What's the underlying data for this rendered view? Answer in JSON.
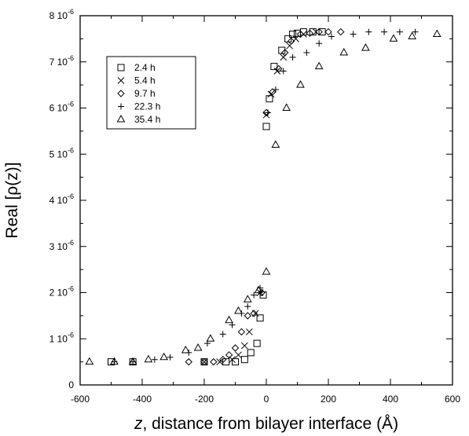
{
  "chart_data": {
    "type": "scatter",
    "xlabel_italic": "z",
    "xlabel_rest": ", distance from bilayer interface (Å)",
    "ylabel": "Real [ρ(z)]",
    "xlim": [
      -600,
      600
    ],
    "ylim": [
      0,
      8e-06
    ],
    "x_ticks": [
      -600,
      -400,
      -200,
      0,
      200,
      400,
      600
    ],
    "x_tick_labels": [
      "-600",
      "-400",
      "-200",
      "0",
      "200",
      "400",
      "600"
    ],
    "y_ticks": [
      0,
      1e-06,
      2e-06,
      3e-06,
      4e-06,
      5e-06,
      6e-06,
      7e-06,
      8e-06
    ],
    "y_tick_labels": [
      {
        "mantissa": "0",
        "exp": ""
      },
      {
        "mantissa": "1 10",
        "exp": "-6"
      },
      {
        "mantissa": "2 10",
        "exp": "-6"
      },
      {
        "mantissa": "3 10",
        "exp": "-6"
      },
      {
        "mantissa": "4 10",
        "exp": "-6"
      },
      {
        "mantissa": "5 10",
        "exp": "-6"
      },
      {
        "mantissa": "6 10",
        "exp": "-6"
      },
      {
        "mantissa": "7 10",
        "exp": "-6"
      },
      {
        "mantissa": "8 10",
        "exp": "-6"
      }
    ],
    "grid": false,
    "legend_position": "top-left",
    "series": [
      {
        "name": "2.4 h",
        "marker": "square",
        "points": [
          [
            -500,
            5e-07
          ],
          [
            -430,
            5e-07
          ],
          [
            -200,
            5e-07
          ],
          [
            -130,
            5e-07
          ],
          [
            -100,
            5e-07
          ],
          [
            -70,
            5.5e-07
          ],
          [
            -50,
            7e-07
          ],
          [
            -30,
            9e-07
          ],
          [
            -20,
            1.45e-06
          ],
          [
            -10,
            1.95e-06
          ],
          [
            0,
            5.6e-06
          ],
          [
            10,
            6.2e-06
          ],
          [
            25,
            6.9e-06
          ],
          [
            50,
            7.25e-06
          ],
          [
            70,
            7.5e-06
          ],
          [
            85,
            7.6e-06
          ],
          [
            100,
            7.62e-06
          ],
          [
            120,
            7.65e-06
          ],
          [
            150,
            7.65e-06
          ],
          [
            180,
            7.65e-06
          ]
        ]
      },
      {
        "name": "5.4 h",
        "marker": "cross",
        "points": [
          [
            -200,
            5e-07
          ],
          [
            -150,
            5e-07
          ],
          [
            -110,
            5.5e-07
          ],
          [
            -90,
            6.5e-07
          ],
          [
            -70,
            8.5e-07
          ],
          [
            -55,
            1.15e-06
          ],
          [
            -35,
            1.55e-06
          ],
          [
            -20,
            2e-06
          ],
          [
            0,
            5.85e-06
          ],
          [
            15,
            6.3e-06
          ],
          [
            35,
            6.8e-06
          ],
          [
            55,
            7.1e-06
          ],
          [
            75,
            7.35e-06
          ],
          [
            95,
            7.5e-06
          ],
          [
            120,
            7.6e-06
          ],
          [
            160,
            7.65e-06
          ]
        ]
      },
      {
        "name": "9.7 h",
        "marker": "diamond",
        "points": [
          [
            -250,
            5e-07
          ],
          [
            -200,
            5e-07
          ],
          [
            -170,
            5e-07
          ],
          [
            -140,
            5.5e-07
          ],
          [
            -120,
            6.5e-07
          ],
          [
            -100,
            8e-07
          ],
          [
            -80,
            1.15e-06
          ],
          [
            -60,
            1.5e-06
          ],
          [
            -40,
            1.55e-06
          ],
          [
            -15,
            2e-06
          ],
          [
            0,
            5.9e-06
          ],
          [
            20,
            6.35e-06
          ],
          [
            40,
            6.85e-06
          ],
          [
            60,
            7.2e-06
          ],
          [
            80,
            7.45e-06
          ],
          [
            110,
            7.6e-06
          ],
          [
            140,
            7.62e-06
          ],
          [
            170,
            7.65e-06
          ],
          [
            200,
            7.65e-06
          ],
          [
            240,
            7.65e-06
          ]
        ]
      },
      {
        "name": "22.3 h",
        "marker": "plus",
        "points": [
          [
            -490,
            5e-07
          ],
          [
            -430,
            5e-07
          ],
          [
            -360,
            5.5e-07
          ],
          [
            -310,
            6e-07
          ],
          [
            -250,
            7e-07
          ],
          [
            -190,
            9e-07
          ],
          [
            -140,
            1.1e-06
          ],
          [
            -110,
            1.3e-06
          ],
          [
            -80,
            1.55e-06
          ],
          [
            -60,
            1.7e-06
          ],
          [
            -40,
            1.95e-06
          ],
          [
            -20,
            2.1e-06
          ],
          [
            5,
            5.9e-06
          ],
          [
            30,
            6.4e-06
          ],
          [
            55,
            6.8e-06
          ],
          [
            85,
            7.1e-06
          ],
          [
            130,
            7.2e-06
          ],
          [
            170,
            7.4e-06
          ],
          [
            210,
            7.55e-06
          ],
          [
            280,
            7.6e-06
          ],
          [
            330,
            7.65e-06
          ],
          [
            380,
            7.65e-06
          ],
          [
            430,
            7.65e-06
          ],
          [
            480,
            7.65e-06
          ]
        ]
      },
      {
        "name": "35.4 h",
        "marker": "triangle",
        "points": [
          [
            -570,
            5e-07
          ],
          [
            -490,
            5e-07
          ],
          [
            -430,
            5e-07
          ],
          [
            -380,
            5.5e-07
          ],
          [
            -330,
            6e-07
          ],
          [
            -260,
            7.5e-07
          ],
          [
            -220,
            8e-07
          ],
          [
            -180,
            1e-06
          ],
          [
            -120,
            1.4e-06
          ],
          [
            -90,
            1.6e-06
          ],
          [
            -60,
            1.85e-06
          ],
          [
            -25,
            2.05e-06
          ],
          [
            0,
            2.45e-06
          ],
          [
            30,
            5.2e-06
          ],
          [
            65,
            6e-06
          ],
          [
            110,
            6.5e-06
          ],
          [
            170,
            6.9e-06
          ],
          [
            250,
            7.2e-06
          ],
          [
            320,
            7.3e-06
          ],
          [
            410,
            7.5e-06
          ],
          [
            470,
            7.55e-06
          ],
          [
            550,
            7.6e-06
          ]
        ]
      }
    ]
  }
}
